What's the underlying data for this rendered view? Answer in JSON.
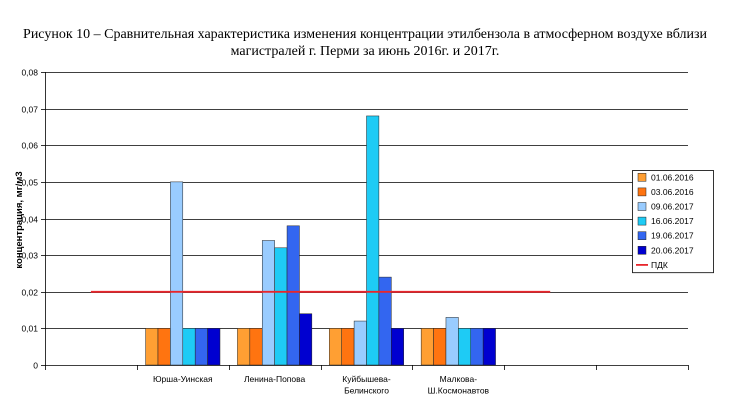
{
  "chart_data": {
    "type": "bar",
    "title_lines": [
      "Рисунок 10 – Сравнительная характеристика изменения концентрации этилбензола в атмосферном воздухе вблизи",
      "магистралей г. Перми за июнь 2016г. и 2017г."
    ],
    "ylabel": "концентрация, мг/м3",
    "ylim": [
      0,
      0.08
    ],
    "yticks": [
      {
        "value": 0,
        "label": "0"
      },
      {
        "value": 0.01,
        "label": "0,01"
      },
      {
        "value": 0.02,
        "label": "0,02"
      },
      {
        "value": 0.03,
        "label": "0,03"
      },
      {
        "value": 0.04,
        "label": "0,04"
      },
      {
        "value": 0.05,
        "label": "0,05"
      },
      {
        "value": 0.06,
        "label": "0,06"
      },
      {
        "value": 0.07,
        "label": "0,07"
      },
      {
        "value": 0.08,
        "label": "0,08"
      }
    ],
    "grid": true,
    "legend_position": "right",
    "categories": [
      "",
      "Юрша-Уинская",
      "Ленина-Попова",
      "Куйбышева-Белинского",
      "Малкова-Ш.Космонавтов",
      "",
      ""
    ],
    "series": [
      {
        "name": "01.06.2016",
        "type": "bar",
        "color": "#FF9F33",
        "values": [
          null,
          0.01,
          0.01,
          0.01,
          0.01,
          null,
          null
        ]
      },
      {
        "name": "03.06.2016",
        "type": "bar",
        "color": "#FF7410",
        "values": [
          null,
          0.01,
          0.01,
          0.01,
          0.01,
          null,
          null
        ]
      },
      {
        "name": "09.06.2017",
        "type": "bar",
        "color": "#99CCFF",
        "values": [
          null,
          0.05,
          0.034,
          0.012,
          0.013,
          null,
          null
        ]
      },
      {
        "name": "16.06.2017",
        "type": "bar",
        "color": "#1ECBF5",
        "values": [
          null,
          0.01,
          0.032,
          0.068,
          0.01,
          null,
          null
        ]
      },
      {
        "name": "19.06.2017",
        "type": "bar",
        "color": "#3366F0",
        "values": [
          null,
          0.01,
          0.038,
          0.024,
          0.01,
          null,
          null
        ]
      },
      {
        "name": "20.06.2017",
        "type": "bar",
        "color": "#0000D0",
        "values": [
          null,
          0.01,
          0.014,
          0.01,
          0.01,
          null,
          null
        ]
      },
      {
        "name": "ПДК",
        "type": "line",
        "color": "#E8262C",
        "values": [
          0.02,
          0.02,
          0.02,
          0.02,
          0.02,
          0.02,
          null
        ]
      }
    ]
  }
}
